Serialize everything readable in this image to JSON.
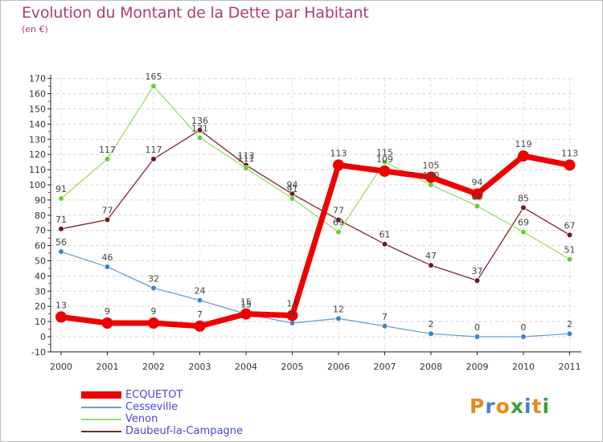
{
  "header": {
    "title": "Evolution du Montant de la Dette par Habitant",
    "unit": "(en €)"
  },
  "logo": {
    "text": "Proxiti",
    "letters": [
      "P",
      "r",
      "o",
      "x",
      "i",
      "t",
      "i"
    ],
    "colors": [
      "#e88a1a",
      "#4a7fd0",
      "#e88a1a",
      "#3aa03a",
      "#4a7fd0",
      "#e88a1a",
      "#3aa03a"
    ]
  },
  "chart_data": {
    "type": "line",
    "title": "Evolution du Montant de la Dette par Habitant",
    "ylabel": "(en €)",
    "xlabel": "",
    "categories": [
      "2000",
      "2001",
      "2002",
      "2003",
      "2004",
      "2005",
      "2006",
      "2007",
      "2008",
      "2009",
      "2010",
      "2011"
    ],
    "ylim": [
      -10,
      170
    ],
    "yticks": [
      -10,
      0,
      10,
      20,
      30,
      40,
      50,
      60,
      70,
      80,
      90,
      100,
      110,
      120,
      130,
      140,
      150,
      160,
      170
    ],
    "grid": "horizontal dashed",
    "legend_position": "bottom-left",
    "series": [
      {
        "name": "ECQUETOT",
        "color": "#ee0000",
        "marker": "#ee0000",
        "values": [
          13,
          9,
          9,
          7,
          15,
          14,
          113,
          109,
          105,
          94,
          119,
          113
        ],
        "labels": [
          "13",
          "9",
          "9",
          "7",
          "15",
          "14",
          "113",
          "109",
          "105",
          "94",
          "119",
          "113"
        ]
      },
      {
        "name": "Cesseville",
        "color": "#6a9ed6",
        "marker": "#3a85cc",
        "values": [
          56,
          46,
          32,
          24,
          15,
          9,
          12,
          7,
          2,
          0,
          0,
          2
        ],
        "labels": [
          "56",
          "46",
          "32",
          "24",
          "15",
          "9",
          "12",
          "7",
          "2",
          "0",
          "0",
          "2"
        ]
      },
      {
        "name": "Venon",
        "color": "#99dd66",
        "marker": "#66cc33",
        "values": [
          91,
          117,
          165,
          131,
          111,
          91,
          69,
          115,
          100,
          86,
          69,
          51
        ],
        "labels": [
          "91",
          "117",
          "165",
          "131",
          "111",
          "91",
          "69",
          "115",
          "100",
          "86",
          "69",
          "51"
        ]
      },
      {
        "name": "Daubeuf-la-Campagne",
        "color": "#7a2a2a",
        "marker": "#6a1a1a",
        "values": [
          71,
          77,
          117,
          136,
          113,
          94,
          77,
          61,
          47,
          37,
          85,
          67
        ],
        "labels": [
          "71",
          "77",
          "117",
          "136",
          "113",
          "94",
          "77",
          "61",
          "47",
          "37",
          "85",
          "67"
        ]
      }
    ]
  }
}
